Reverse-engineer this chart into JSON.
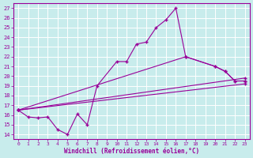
{
  "xlabel": "Windchill (Refroidissement éolien,°C)",
  "xlim": [
    -0.5,
    23.5
  ],
  "ylim": [
    13.5,
    27.5
  ],
  "yticks": [
    14,
    15,
    16,
    17,
    18,
    19,
    20,
    21,
    22,
    23,
    24,
    25,
    26,
    27
  ],
  "xticks": [
    0,
    1,
    2,
    3,
    4,
    5,
    6,
    7,
    8,
    9,
    10,
    11,
    12,
    13,
    14,
    15,
    16,
    17,
    18,
    19,
    20,
    21,
    22,
    23
  ],
  "bg_color": "#c8ecec",
  "grid_color": "#ffffff",
  "line_color": "#990099",
  "line1_x": [
    0,
    1,
    2,
    3,
    4,
    5,
    6,
    7,
    8,
    10,
    11,
    12,
    13,
    14,
    15,
    16,
    17,
    20,
    21,
    22,
    23
  ],
  "line1_y": [
    16.5,
    15.8,
    15.7,
    15.8,
    14.5,
    14.0,
    16.1,
    15.0,
    19.0,
    21.5,
    21.5,
    23.3,
    23.5,
    25.0,
    25.8,
    27.0,
    22.0,
    21.0,
    20.5,
    19.5,
    19.5
  ],
  "line2_x": [
    0,
    17,
    20,
    21,
    22,
    23
  ],
  "line2_y": [
    16.5,
    22.0,
    21.0,
    20.5,
    19.5,
    19.5
  ],
  "line3_x": [
    0,
    23
  ],
  "line3_y": [
    16.5,
    19.2
  ],
  "line4_x": [
    0,
    23
  ],
  "line4_y": [
    16.5,
    19.8
  ]
}
